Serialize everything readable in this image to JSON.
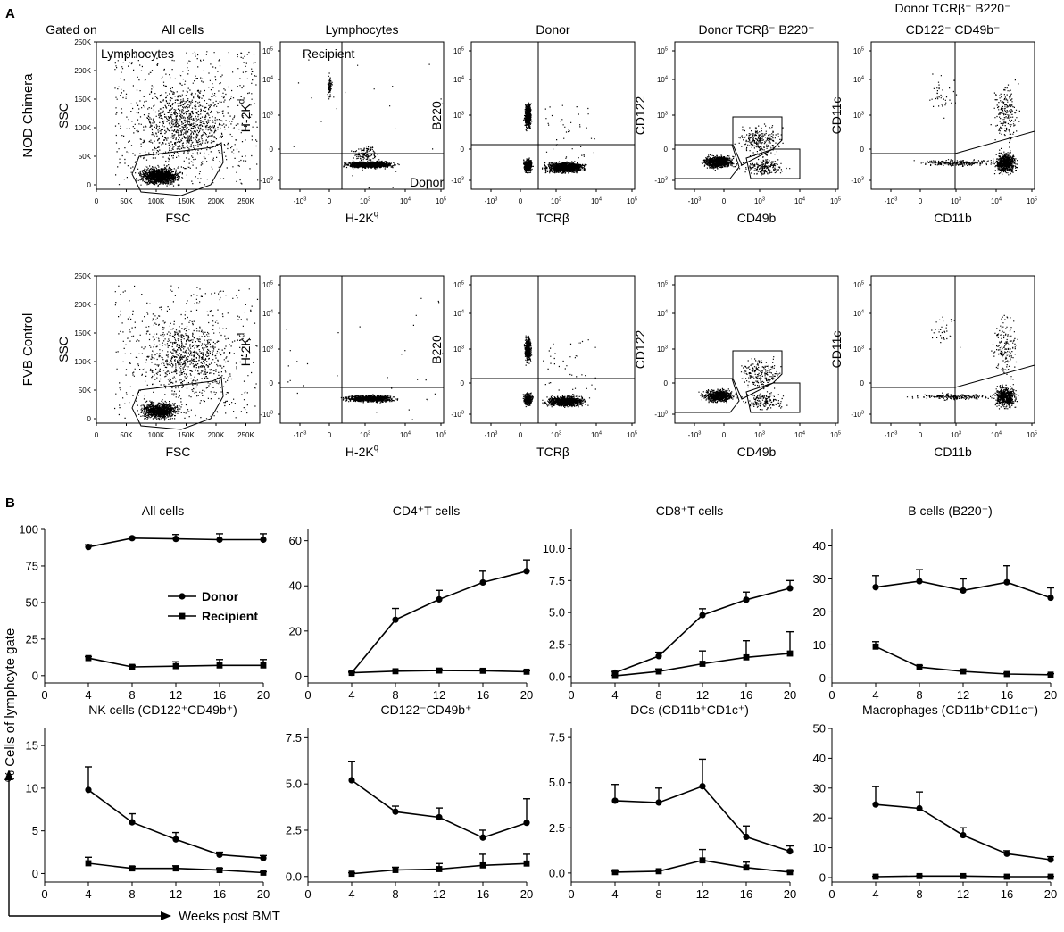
{
  "panel_labels": {
    "a": "A",
    "b": "B"
  },
  "panelA": {
    "gated_on_label": "Gated on",
    "row_labels": [
      "NOD Chimera",
      "FVB Control"
    ],
    "plots": [
      {
        "key": "all",
        "title": [
          "All cells"
        ],
        "xlabel": "FSC",
        "ylabel": "SSC",
        "scale": "linear",
        "x_ticks": [
          "0",
          "50K",
          "100K",
          "150K",
          "200K",
          "250K"
        ],
        "y_ticks": [
          "0",
          "50K",
          "100K",
          "150K",
          "200K",
          "250K"
        ],
        "gate_label": "Lymphocytes"
      },
      {
        "key": "lymph",
        "title": [
          "Lymphocytes"
        ],
        "xlabel": "H-2K",
        "xlabel_sup": "q",
        "ylabel": "H-2K",
        "ylabel_sup": "d",
        "scale": "log",
        "quadrant_labels": [
          "Recipient",
          "Donor"
        ]
      },
      {
        "key": "donor",
        "title": [
          "Donor"
        ],
        "xlabel": "TCRβ",
        "ylabel": "B220",
        "scale": "log"
      },
      {
        "key": "donor_tcr",
        "title": [
          "Donor TCRβ⁻ B220⁻"
        ],
        "xlabel": "CD49b",
        "ylabel": "CD122",
        "scale": "log"
      },
      {
        "key": "donor_cd122",
        "title": [
          "Donor TCRβ⁻ B220⁻",
          "CD122⁻ CD49b⁻"
        ],
        "xlabel": "CD11b",
        "ylabel": "CD11c",
        "scale": "log"
      }
    ],
    "log_x_ticks": [
      "-10",
      "0",
      "10",
      "10",
      "10"
    ],
    "log_x_sups": [
      "3",
      "",
      "3",
      "4",
      "5"
    ],
    "log_y_ticks": [
      "-10",
      "0",
      "10",
      "10",
      "10"
    ],
    "log_y_sups": [
      "3",
      "",
      "3",
      "4",
      "5"
    ]
  },
  "panelB": {
    "ylabel": "% Cells of lymphcyte gate",
    "xlabel": "Weeks post BMT",
    "legend": [
      "Donor",
      "Recipient"
    ]
  },
  "chart_data": [
    {
      "type": "line",
      "title": "All cells",
      "x": [
        4,
        8,
        12,
        16,
        20
      ],
      "xlim": [
        0,
        20
      ],
      "x_ticks": [
        0,
        4,
        8,
        12,
        16,
        20
      ],
      "ylim": [
        -5,
        100
      ],
      "y_ticks": [
        0,
        25,
        50,
        75,
        100
      ],
      "y_tick_labels": [
        "0",
        "25",
        "50",
        "75",
        "100"
      ],
      "series": [
        {
          "name": "Donor",
          "values": [
            88,
            94,
            93.5,
            93,
            93
          ],
          "errors": [
            1.5,
            0.8,
            3,
            4,
            4
          ]
        },
        {
          "name": "Recipient",
          "values": [
            12,
            6,
            6.5,
            7,
            7
          ],
          "errors": [
            1,
            1,
            3,
            4,
            4
          ]
        }
      ]
    },
    {
      "type": "line",
      "title": "CD4⁺T cells",
      "x": [
        4,
        8,
        12,
        16,
        20
      ],
      "xlim": [
        0,
        20
      ],
      "x_ticks": [
        0,
        4,
        8,
        12,
        16,
        20
      ],
      "ylim": [
        -3,
        65
      ],
      "y_ticks": [
        0,
        20,
        40,
        60
      ],
      "y_tick_labels": [
        "0",
        "20",
        "40",
        "60"
      ],
      "series": [
        {
          "name": "Donor",
          "values": [
            1.5,
            25,
            34,
            41.5,
            46.5
          ],
          "errors": [
            0.5,
            5,
            4,
            5,
            5
          ]
        },
        {
          "name": "Recipient",
          "values": [
            1.5,
            2.2,
            2.5,
            2.4,
            2
          ],
          "errors": [
            0.3,
            0.5,
            0.5,
            0.5,
            0.4
          ]
        }
      ]
    },
    {
      "type": "line",
      "title": "CD8⁺T cells",
      "x": [
        4,
        8,
        12,
        16,
        20
      ],
      "xlim": [
        0,
        20
      ],
      "x_ticks": [
        0,
        4,
        8,
        12,
        16,
        20
      ],
      "ylim": [
        -0.5,
        11.5
      ],
      "y_ticks": [
        0,
        2.5,
        5,
        7.5,
        10
      ],
      "y_tick_labels": [
        "0.0",
        "2.5",
        "5.0",
        "7.5",
        "10.0"
      ],
      "series": [
        {
          "name": "Donor",
          "values": [
            0.3,
            1.6,
            4.8,
            6,
            6.9
          ],
          "errors": [
            0.1,
            0.3,
            0.5,
            0.6,
            0.6
          ]
        },
        {
          "name": "Recipient",
          "values": [
            0.05,
            0.4,
            1,
            1.5,
            1.8
          ],
          "errors": [
            0.05,
            0.2,
            1,
            1.3,
            1.7
          ]
        }
      ]
    },
    {
      "type": "line",
      "title": "B cells (B220⁺)",
      "x": [
        4,
        8,
        12,
        16,
        20
      ],
      "xlim": [
        0,
        20
      ],
      "x_ticks": [
        0,
        4,
        8,
        12,
        16,
        20
      ],
      "ylim": [
        -1.5,
        45
      ],
      "y_ticks": [
        0,
        10,
        20,
        30,
        40
      ],
      "y_tick_labels": [
        "0",
        "10",
        "20",
        "30",
        "40"
      ],
      "series": [
        {
          "name": "Donor",
          "values": [
            27.5,
            29.3,
            26.5,
            29,
            24.3
          ],
          "errors": [
            3.5,
            3.5,
            3.5,
            5,
            3
          ]
        },
        {
          "name": "Recipient",
          "values": [
            9.5,
            3.3,
            2,
            1.2,
            1
          ],
          "errors": [
            1.5,
            0.5,
            0.5,
            0.3,
            0.3
          ]
        }
      ]
    },
    {
      "type": "line",
      "title": "NK cells (CD122⁺CD49b⁺)",
      "x": [
        4,
        8,
        12,
        16,
        20
      ],
      "xlim": [
        0,
        20
      ],
      "x_ticks": [
        0,
        4,
        8,
        12,
        16,
        20
      ],
      "ylim": [
        -1,
        17
      ],
      "y_ticks": [
        0,
        5,
        10,
        15
      ],
      "y_tick_labels": [
        "0",
        "5",
        "10",
        "15"
      ],
      "series": [
        {
          "name": "Donor",
          "values": [
            9.8,
            6,
            4,
            2.2,
            1.8
          ],
          "errors": [
            2.7,
            1,
            0.8,
            0.3,
            0.3
          ]
        },
        {
          "name": "Recipient",
          "values": [
            1.2,
            0.6,
            0.6,
            0.4,
            0.1
          ],
          "errors": [
            0.7,
            0.2,
            0.3,
            0.2,
            0.1
          ]
        }
      ]
    },
    {
      "type": "line",
      "title": "CD122⁻CD49b⁺",
      "x": [
        4,
        8,
        12,
        16,
        20
      ],
      "xlim": [
        0,
        20
      ],
      "x_ticks": [
        0,
        4,
        8,
        12,
        16,
        20
      ],
      "ylim": [
        -0.3,
        8
      ],
      "y_ticks": [
        0,
        2.5,
        5,
        7.5
      ],
      "y_tick_labels": [
        "0.0",
        "2.5",
        "5.0",
        "7.5"
      ],
      "series": [
        {
          "name": "Donor",
          "values": [
            5.2,
            3.5,
            3.2,
            2.1,
            2.9
          ],
          "errors": [
            1,
            0.3,
            0.5,
            0.4,
            1.3
          ]
        },
        {
          "name": "Recipient",
          "values": [
            0.15,
            0.35,
            0.4,
            0.6,
            0.7
          ],
          "errors": [
            0.05,
            0.15,
            0.3,
            0.6,
            0.5
          ]
        }
      ]
    },
    {
      "type": "line",
      "title": "DCs (CD11b⁺CD1c⁺)",
      "x": [
        4,
        8,
        12,
        16,
        20
      ],
      "xlim": [
        0,
        20
      ],
      "x_ticks": [
        0,
        4,
        8,
        12,
        16,
        20
      ],
      "ylim": [
        -0.5,
        8
      ],
      "y_ticks": [
        0,
        2.5,
        5,
        7.5
      ],
      "y_tick_labels": [
        "0.0",
        "2.5",
        "5.0",
        "7.5"
      ],
      "series": [
        {
          "name": "Donor",
          "values": [
            4,
            3.9,
            4.8,
            2,
            1.2
          ],
          "errors": [
            0.9,
            0.8,
            1.5,
            0.6,
            0.3
          ]
        },
        {
          "name": "Recipient",
          "values": [
            0.05,
            0.1,
            0.7,
            0.3,
            0.05
          ],
          "errors": [
            0.05,
            0.05,
            0.6,
            0.3,
            0.05
          ]
        }
      ]
    },
    {
      "type": "line",
      "title": "Macrophages (CD11b⁺CD11c⁻)",
      "x": [
        4,
        8,
        12,
        16,
        20
      ],
      "xlim": [
        0,
        20
      ],
      "x_ticks": [
        0,
        4,
        8,
        12,
        16,
        20
      ],
      "ylim": [
        -1.5,
        50
      ],
      "y_ticks": [
        0,
        10,
        20,
        30,
        40,
        50
      ],
      "y_tick_labels": [
        "0",
        "10",
        "20",
        "30",
        "40",
        "50"
      ],
      "series": [
        {
          "name": "Donor",
          "values": [
            24.5,
            23.2,
            14.2,
            8,
            6
          ],
          "errors": [
            6,
            5.5,
            2.5,
            1,
            1
          ]
        },
        {
          "name": "Recipient",
          "values": [
            0.3,
            0.5,
            0.5,
            0.3,
            0.3
          ],
          "errors": [
            0.1,
            0.1,
            0.1,
            0.1,
            0.1
          ]
        }
      ]
    }
  ]
}
